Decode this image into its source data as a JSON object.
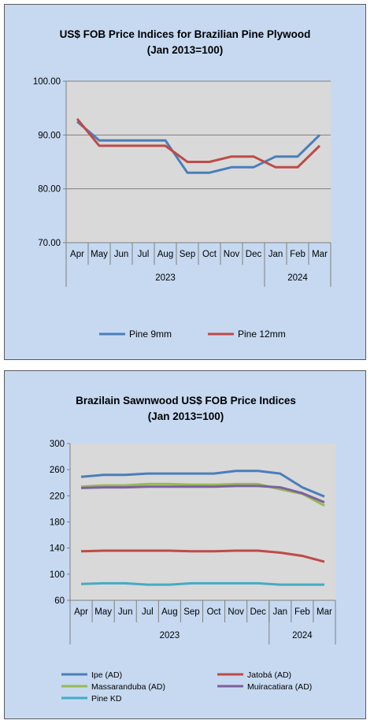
{
  "chart_data": [
    {
      "type": "line",
      "title": "US$ FOB Price Indices for Brazilian  Pine Plywood",
      "subtitle": "(Jan 2013=100)",
      "categories": [
        "Apr",
        "May",
        "Jun",
        "Jul",
        "Aug",
        "Sep",
        "Oct",
        "Nov",
        "Dec",
        "Jan",
        "Feb",
        "Mar"
      ],
      "year_groups": [
        {
          "label": "2023",
          "count": 9
        },
        {
          "label": "2024",
          "count": 3
        }
      ],
      "ylim": [
        70,
        100
      ],
      "yticks": [
        "100.00",
        "90.00",
        "80.00",
        "70.00"
      ],
      "grid": true,
      "legend_position": "bottom",
      "series": [
        {
          "name": "Pine 9mm",
          "color": "#4a7ebb",
          "values": [
            92.5,
            89,
            89,
            89,
            89,
            83,
            83,
            84,
            84,
            86,
            86,
            90
          ]
        },
        {
          "name": "Pine 12mm",
          "color": "#be4b48",
          "values": [
            93,
            88,
            88,
            88,
            88,
            85,
            85,
            86,
            86,
            84,
            84,
            88
          ]
        }
      ]
    },
    {
      "type": "line",
      "title": "Brazilain Sawnwood US$ FOB Price Indices",
      "subtitle": "(Jan 2013=100)",
      "categories": [
        "Apr",
        "May",
        "Jun",
        "Jul",
        "Aug",
        "Sep",
        "Oct",
        "Nov",
        "Dec",
        "Jan",
        "Feb",
        "Mar"
      ],
      "year_groups": [
        {
          "label": "2023",
          "count": 9
        },
        {
          "label": "2024",
          "count": 3
        }
      ],
      "ylim": [
        60,
        300
      ],
      "yticks": [
        "300",
        "260",
        "220",
        "180",
        "140",
        "100",
        "60"
      ],
      "grid": false,
      "legend_position": "bottom",
      "series": [
        {
          "name": "Ipe (AD)",
          "color": "#4a7ebb",
          "values": [
            249,
            252,
            252,
            254,
            254,
            254,
            254,
            258,
            258,
            254,
            233,
            219
          ]
        },
        {
          "name": "Jatobá (AD)",
          "color": "#be4b48",
          "values": [
            135,
            136,
            136,
            136,
            136,
            135,
            135,
            136,
            136,
            133,
            128,
            119
          ]
        },
        {
          "name": "Massaranduba (AD)",
          "color": "#98b954",
          "values": [
            234,
            236,
            236,
            238,
            238,
            237,
            237,
            238,
            238,
            230,
            223,
            205
          ]
        },
        {
          "name": "Muiracatiara (AD)",
          "color": "#7d60a0",
          "values": [
            232,
            233,
            233,
            234,
            234,
            234,
            234,
            235,
            235,
            233,
            224,
            210
          ]
        },
        {
          "name": "Pine KD",
          "color": "#46aac5",
          "values": [
            85,
            86,
            86,
            84,
            84,
            86,
            86,
            86,
            86,
            84,
            84,
            84
          ]
        }
      ]
    }
  ]
}
